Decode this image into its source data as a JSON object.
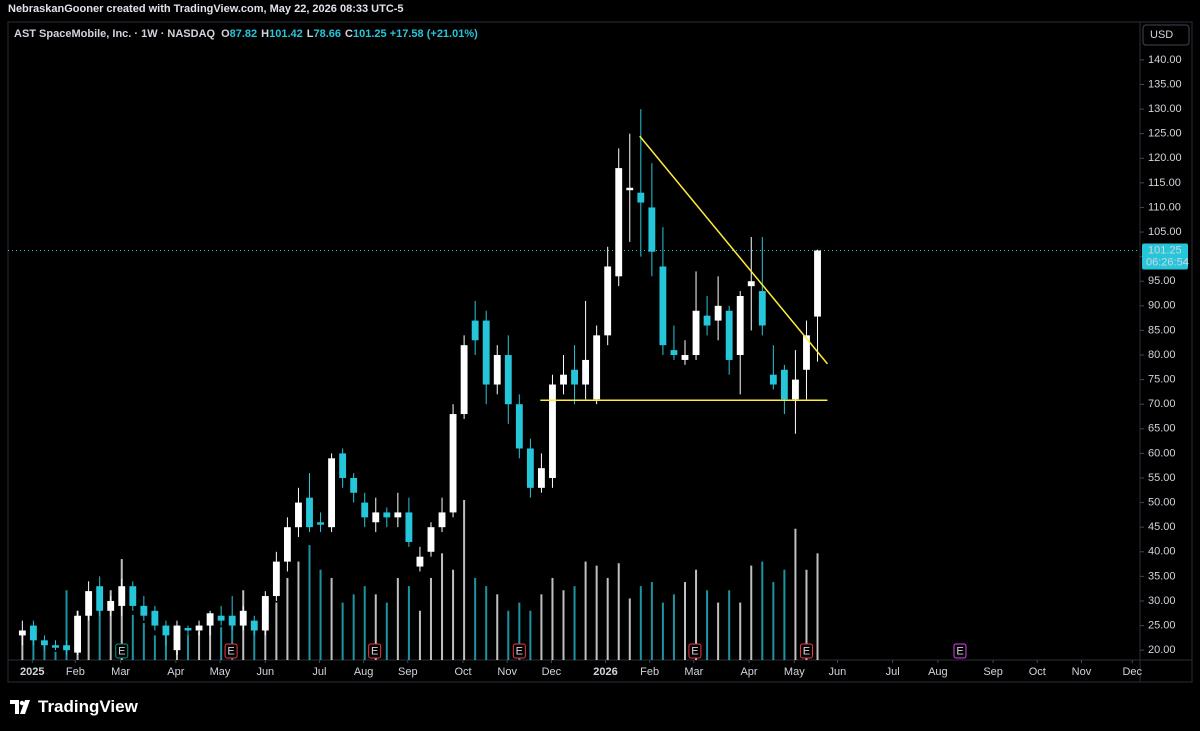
{
  "header": {
    "text": "NebraskanGooner created with TradingView.com, May 22, 2026 08:33 UTC-5"
  },
  "chart_data": {
    "type": "candlestick",
    "title": "AST SpaceMobile, Inc. · 1W · NASDAQ",
    "ohlc_legend": [
      {
        "label": "O",
        "value": 87.82
      },
      {
        "label": "H",
        "value": 101.42
      },
      {
        "label": "L",
        "value": 78.66
      },
      {
        "label": "C",
        "value": 101.25
      }
    ],
    "change": "+17.58 (+21.01%)",
    "currency": "USD",
    "open": [
      23,
      25,
      22,
      21,
      21,
      19.5,
      27,
      33,
      28,
      29,
      33,
      29,
      28,
      25,
      20,
      24.5,
      24,
      25,
      27,
      27,
      25,
      26,
      24,
      31,
      38,
      45,
      51,
      46,
      45,
      60,
      55,
      50,
      46,
      48,
      47,
      48,
      37,
      40,
      45,
      48,
      68,
      87,
      87,
      74,
      80,
      70,
      61,
      53,
      55,
      74,
      77,
      74,
      71,
      84,
      96,
      113.5,
      113,
      110,
      98,
      81,
      79,
      80,
      88,
      87,
      89,
      80,
      94,
      93,
      76,
      77,
      71,
      77,
      87.82
    ],
    "high": [
      26,
      26,
      23,
      22,
      22,
      28,
      34,
      35,
      31,
      34.5,
      34,
      31,
      29,
      26,
      26,
      25,
      26,
      28,
      29,
      31,
      29,
      27,
      32,
      40,
      47,
      53,
      56,
      48,
      60,
      61,
      56,
      52,
      51,
      49,
      52,
      51,
      41,
      46,
      51,
      70,
      84,
      91,
      89,
      82,
      84,
      72,
      63,
      60,
      76,
      80,
      82,
      91,
      86,
      102,
      122,
      125,
      130,
      119,
      106,
      86,
      83,
      97,
      92,
      96,
      90,
      93,
      104,
      104,
      82,
      78,
      81,
      87,
      101.42
    ],
    "low": [
      21,
      21,
      20,
      20,
      19,
      19,
      26,
      27,
      27,
      27,
      28,
      26,
      24,
      21,
      19,
      23,
      23,
      23,
      25,
      24,
      24,
      23,
      23,
      30,
      36,
      43,
      44,
      44,
      44,
      53,
      50,
      45,
      44,
      45,
      45,
      41,
      36,
      39,
      44,
      47,
      67,
      80,
      70,
      72,
      66,
      59,
      51,
      52,
      53,
      72,
      70,
      71,
      70,
      82,
      94,
      103,
      100,
      96,
      80,
      79,
      78,
      79,
      84,
      83,
      76,
      72,
      85,
      84,
      73,
      68,
      64,
      71,
      78.66
    ],
    "close": [
      24,
      22,
      21,
      20.5,
      20,
      27,
      32,
      28,
      30,
      33,
      29,
      27,
      25,
      23,
      25,
      24,
      25,
      27.5,
      26,
      25,
      28,
      24,
      31,
      38,
      45,
      50,
      45,
      45.5,
      59,
      55,
      52,
      47,
      48,
      47,
      48,
      42,
      39,
      45,
      48,
      68,
      82,
      83,
      74,
      80,
      70,
      61,
      53,
      57,
      74,
      76,
      74,
      79,
      84,
      98,
      118,
      114,
      111,
      101,
      82,
      80,
      80,
      89,
      86,
      90,
      79,
      92,
      95,
      86,
      74,
      71,
      75,
      84,
      101.25
    ],
    "volume": [
      32,
      35,
      20,
      10,
      85,
      60,
      70,
      75,
      85,
      123,
      55,
      45,
      30,
      35,
      40,
      30,
      35,
      45,
      40,
      45,
      85,
      45,
      50,
      70,
      100,
      120,
      140,
      110,
      100,
      70,
      80,
      90,
      80,
      70,
      100,
      90,
      60,
      100,
      130,
      110,
      195,
      100,
      90,
      80,
      60,
      70,
      60,
      80,
      100,
      85,
      90,
      120,
      115,
      100,
      118,
      75,
      90,
      95,
      70,
      80,
      95,
      110,
      85,
      70,
      85,
      70,
      115,
      120,
      95,
      110,
      160,
      110,
      130
    ],
    "up_color": "#ffffff",
    "down_color": "#26c6da",
    "xlim": [
      -1.3,
      101.2
    ],
    "ylim": [
      18,
      147.7
    ],
    "yticks": [
      {
        "value": 20,
        "label": "20.00"
      },
      {
        "value": 25,
        "label": "25.00"
      },
      {
        "value": 30,
        "label": "30.00"
      },
      {
        "value": 35,
        "label": "35.00"
      },
      {
        "value": 40,
        "label": "40.00"
      },
      {
        "value": 45,
        "label": "45.00"
      },
      {
        "value": 50,
        "label": "50.00"
      },
      {
        "value": 55,
        "label": "55.00"
      },
      {
        "value": 60,
        "label": "60.00"
      },
      {
        "value": 65,
        "label": "65.00"
      },
      {
        "value": 70,
        "label": "70.00"
      },
      {
        "value": 75,
        "label": "75.00"
      },
      {
        "value": 80,
        "label": "80.00"
      },
      {
        "value": 85,
        "label": "85.00"
      },
      {
        "value": 90,
        "label": "90.00"
      },
      {
        "value": 95,
        "label": "95.00"
      },
      {
        "value": 100,
        "label": "100.00"
      },
      {
        "value": 105,
        "label": "105.00"
      },
      {
        "value": 110,
        "label": "110.00"
      },
      {
        "value": 115,
        "label": "115.00"
      },
      {
        "value": 120,
        "label": "120.00"
      },
      {
        "value": 125,
        "label": "125.00"
      },
      {
        "value": 130,
        "label": "130.00"
      },
      {
        "value": 135,
        "label": "135.00"
      },
      {
        "value": 140,
        "label": "140.00"
      }
    ],
    "xticks": [
      {
        "value": 0.9,
        "label": "2025"
      },
      {
        "value": 4.8,
        "label": "Feb"
      },
      {
        "value": 8.9,
        "label": "Mar"
      },
      {
        "value": 13.9,
        "label": "Apr"
      },
      {
        "value": 17.9,
        "label": "May"
      },
      {
        "value": 22,
        "label": "Jun"
      },
      {
        "value": 26.9,
        "label": "Jul"
      },
      {
        "value": 30.9,
        "label": "Aug"
      },
      {
        "value": 34.9,
        "label": "Sep"
      },
      {
        "value": 39.9,
        "label": "Oct"
      },
      {
        "value": 43.9,
        "label": "Nov"
      },
      {
        "value": 47.9,
        "label": "Dec"
      },
      {
        "value": 52.8,
        "label": "2026"
      },
      {
        "value": 56.8,
        "label": "Feb"
      },
      {
        "value": 60.8,
        "label": "Mar"
      },
      {
        "value": 65.8,
        "label": "Apr"
      },
      {
        "value": 69.9,
        "label": "May"
      },
      {
        "value": 73.8,
        "label": "Jun"
      },
      {
        "value": 78.8,
        "label": "Jul"
      },
      {
        "value": 82.9,
        "label": "Aug"
      },
      {
        "value": 87.9,
        "label": "Sep"
      },
      {
        "value": 91.9,
        "label": "Oct"
      },
      {
        "value": 95.9,
        "label": "Nov"
      },
      {
        "value": 100.5,
        "label": "Dec"
      }
    ],
    "last_price": 101.25,
    "countdown": "06:26:54",
    "trendline_color": "#ffeb3b",
    "trendlines": [
      {
        "x": [
          55.9,
          72.9
        ],
        "y": [
          124.5,
          78.2
        ]
      },
      {
        "x": [
          46.9,
          72.9
        ],
        "y": [
          70.8,
          70.8
        ]
      }
    ],
    "earnings": {
      "label": "E",
      "x": [
        9.0,
        18.9,
        31.9,
        45.0,
        60.9,
        71.0,
        84.9
      ],
      "colors": [
        "#089981",
        "#f23645",
        "#f23645",
        "#f23645",
        "#f23645",
        "#f23645",
        "#e040fb"
      ]
    }
  },
  "footer": {
    "logo": "TradingView"
  }
}
